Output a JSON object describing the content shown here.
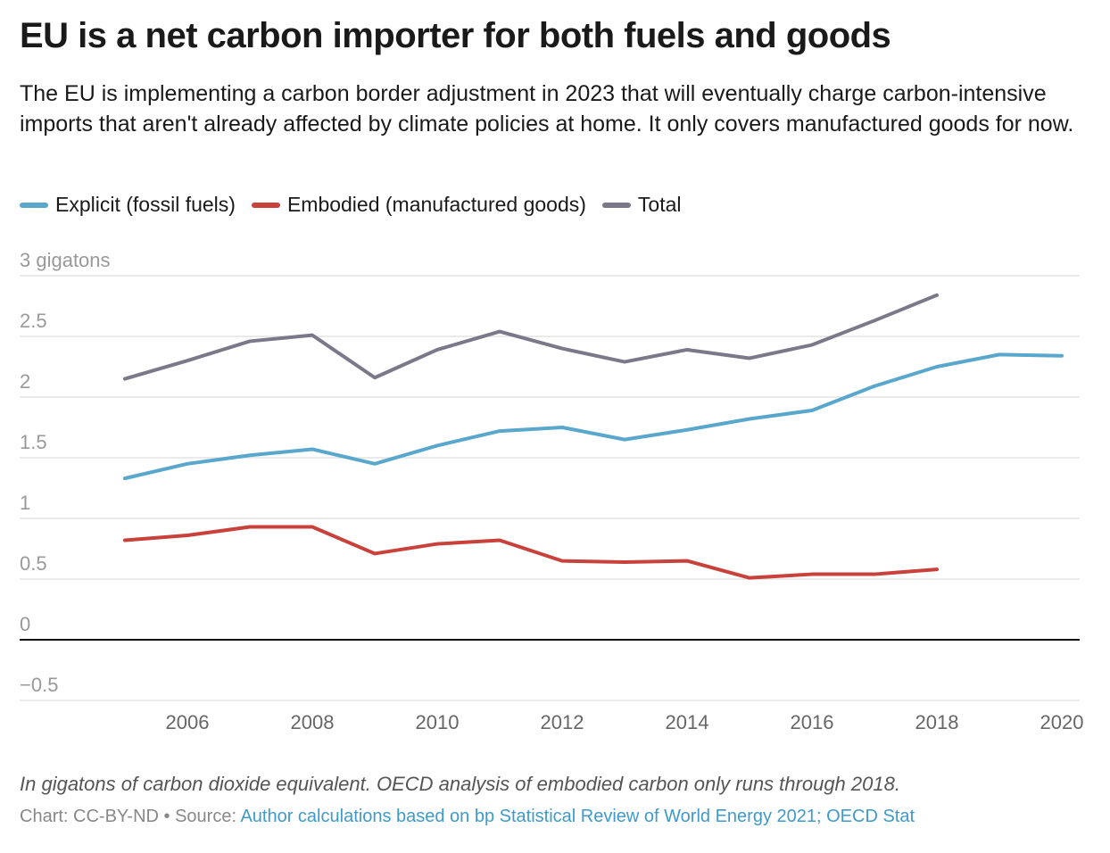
{
  "chart_data": {
    "type": "line",
    "title": "EU is a net carbon importer for both fuels and goods",
    "subtitle": "The EU is implementing a carbon border adjustment in 2023 that will eventually charge carbon-intensive imports that aren't already affected by climate policies at home. It only covers manufactured goods for now.",
    "ylim": [
      -0.5,
      3
    ],
    "yticks": [
      -0.5,
      0,
      0.5,
      1,
      1.5,
      2,
      2.5,
      3
    ],
    "ytick_labels": [
      "−0.5",
      "0",
      "0.5",
      "1",
      "1.5",
      "2",
      "2.5",
      "3 gigatons"
    ],
    "xlim": [
      2004.75,
      2020.3
    ],
    "xticks": [
      2006,
      2008,
      2010,
      2012,
      2014,
      2016,
      2018,
      2020
    ],
    "grid": true,
    "legend_placement": "top-left",
    "series": [
      {
        "name": "Explicit (fossil fuels)",
        "color": "#59a7cc",
        "x": [
          2005,
          2006,
          2007,
          2008,
          2009,
          2010,
          2011,
          2012,
          2013,
          2014,
          2015,
          2016,
          2017,
          2018,
          2019,
          2020
        ],
        "values": [
          1.33,
          1.45,
          1.52,
          1.57,
          1.45,
          1.6,
          1.72,
          1.75,
          1.65,
          1.73,
          1.82,
          1.89,
          2.09,
          2.25,
          2.35,
          2.34
        ]
      },
      {
        "name": "Embodied (manufactured goods)",
        "color": "#c8413a",
        "x": [
          2005,
          2006,
          2007,
          2008,
          2009,
          2010,
          2011,
          2012,
          2013,
          2014,
          2015,
          2016,
          2017,
          2018
        ],
        "values": [
          0.82,
          0.86,
          0.93,
          0.93,
          0.71,
          0.79,
          0.82,
          0.65,
          0.64,
          0.65,
          0.51,
          0.54,
          0.54,
          0.58
        ]
      },
      {
        "name": "Total",
        "color": "#7a7889",
        "x": [
          2005,
          2006,
          2007,
          2008,
          2009,
          2010,
          2011,
          2012,
          2013,
          2014,
          2015,
          2016,
          2017,
          2018
        ],
        "values": [
          2.15,
          2.3,
          2.46,
          2.51,
          2.16,
          2.39,
          2.54,
          2.4,
          2.29,
          2.39,
          2.32,
          2.43,
          2.63,
          2.84
        ]
      }
    ]
  },
  "footer": {
    "note": "In gigatons of carbon dioxide equivalent. OECD analysis of embodied carbon only runs through 2018.",
    "credit": "Chart: CC-BY-ND • Source: ",
    "source_link": "Author calculations based on bp Statistical Review of World Energy 2021; OECD Stat"
  }
}
